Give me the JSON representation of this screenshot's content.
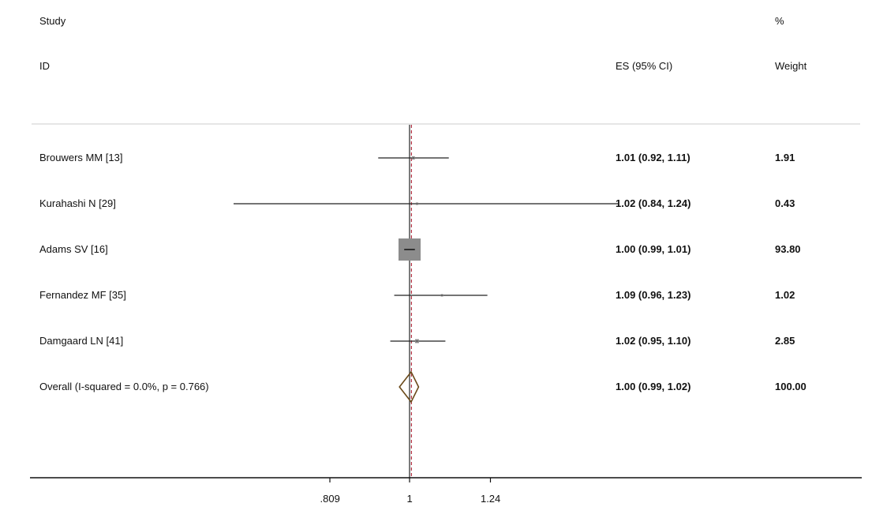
{
  "header": {
    "study_label": "Study",
    "id_label": "ID",
    "es_label": "ES (95% CI)",
    "pct_label": "%",
    "weight_label": "Weight"
  },
  "chart_data": {
    "type": "forest",
    "null_line": 1,
    "overall_line": 1.005,
    "rows": [
      {
        "study": "Brouwers MM [13]",
        "es": 1.01,
        "lo": 0.92,
        "hi": 1.11,
        "es_text": "1.01 (0.92, 1.11)",
        "weight": "1.91",
        "w": 1.91
      },
      {
        "study": "Kurahashi N [29]",
        "es": 1.02,
        "lo": 0.84,
        "hi": 1.24,
        "es_text": "1.02 (0.84, 1.24)",
        "weight": "0.43",
        "w": 0.43
      },
      {
        "study": "Adams SV [16]",
        "es": 1.0,
        "lo": 0.99,
        "hi": 1.01,
        "es_text": "1.00 (0.99, 1.01)",
        "weight": "93.80",
        "w": 93.8
      },
      {
        "study": "Fernandez MF [35]",
        "es": 1.09,
        "lo": 0.96,
        "hi": 1.23,
        "es_text": "1.09 (0.96, 1.23)",
        "weight": "1.02",
        "w": 1.02
      },
      {
        "study": "Damgaard LN [41]",
        "es": 1.02,
        "lo": 0.95,
        "hi": 1.1,
        "es_text": "1.02 (0.95, 1.10)",
        "weight": "2.85",
        "w": 2.85
      }
    ],
    "overall": {
      "label": "Overall  (I-squared = 0.0%, p = 0.766)",
      "es": 1.0,
      "lo": 0.99,
      "hi": 1.02,
      "es_text": "1.00 (0.99, 1.02)",
      "weight": "100.00"
    },
    "x_ticks": [
      {
        "value": 0.809,
        "label": ".809"
      },
      {
        "value": 1,
        "label": "1"
      },
      {
        "value": 1.24,
        "label": "1.24"
      }
    ],
    "xlim": [
      0.84,
      1.24
    ],
    "x_scale": "log",
    "colors": {
      "marker": "#8c8c8c",
      "ci_line": "#222222",
      "diamond": "#6b4a1a",
      "overall_line": "#b03040",
      "axis": "#111111",
      "separator": "#cccccc"
    }
  }
}
